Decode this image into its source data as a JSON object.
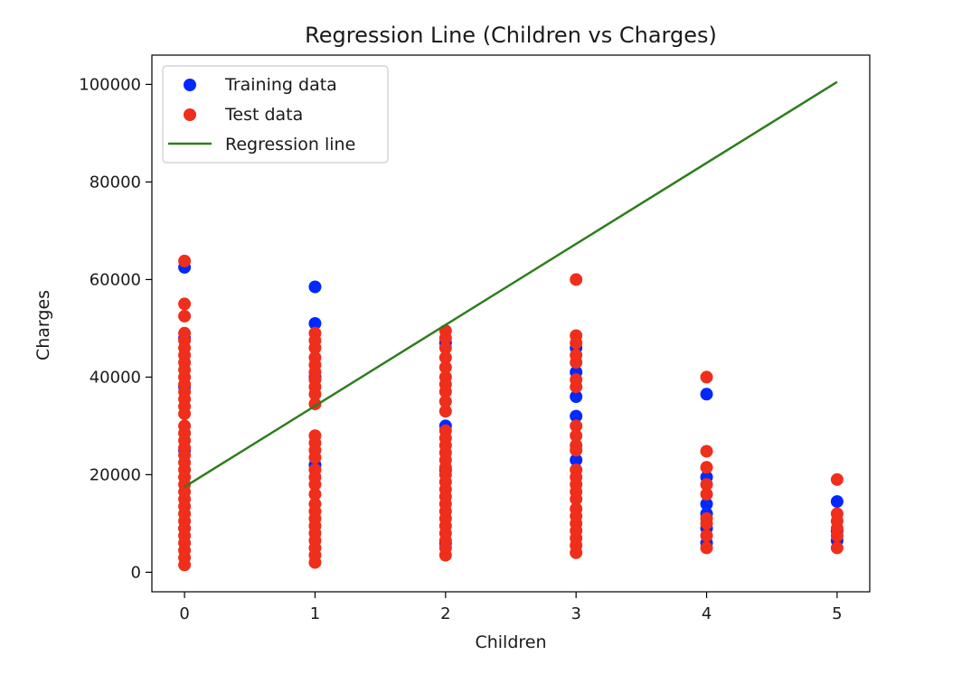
{
  "chart_data": {
    "type": "scatter",
    "title": "Regression Line (Children vs Charges)",
    "xlabel": "Children",
    "ylabel": "Charges",
    "xlim": [
      -0.25,
      5.25
    ],
    "ylim": [
      -4000,
      106000
    ],
    "xticks": [
      0,
      1,
      2,
      3,
      4,
      5
    ],
    "yticks": [
      0,
      20000,
      40000,
      60000,
      80000,
      100000
    ],
    "grid": false,
    "legend_position": "top-left",
    "series": [
      {
        "name": "Training data",
        "kind": "scatter",
        "color": "#0028ff",
        "points": [
          {
            "x": 0,
            "y": 62500
          },
          {
            "x": 0,
            "y": 48000
          },
          {
            "x": 0,
            "y": 38000
          },
          {
            "x": 0,
            "y": 25000
          },
          {
            "x": 0,
            "y": 9000
          },
          {
            "x": 1,
            "y": 58500
          },
          {
            "x": 1,
            "y": 51000
          },
          {
            "x": 1,
            "y": 40000
          },
          {
            "x": 1,
            "y": 22000
          },
          {
            "x": 2,
            "y": 47000
          },
          {
            "x": 2,
            "y": 30000
          },
          {
            "x": 2,
            "y": 21000
          },
          {
            "x": 2,
            "y": 6000
          },
          {
            "x": 3,
            "y": 46000
          },
          {
            "x": 3,
            "y": 41000
          },
          {
            "x": 3,
            "y": 36000
          },
          {
            "x": 3,
            "y": 32000
          },
          {
            "x": 3,
            "y": 23000
          },
          {
            "x": 4,
            "y": 36500
          },
          {
            "x": 4,
            "y": 19500
          },
          {
            "x": 4,
            "y": 14000
          },
          {
            "x": 4,
            "y": 12000
          },
          {
            "x": 4,
            "y": 9000
          },
          {
            "x": 4,
            "y": 6000
          },
          {
            "x": 5,
            "y": 14500
          },
          {
            "x": 5,
            "y": 8500
          },
          {
            "x": 5,
            "y": 6500
          }
        ]
      },
      {
        "name": "Test data",
        "kind": "scatter",
        "color": "#f02e1c",
        "points": [
          {
            "x": 0,
            "y": 63800
          },
          {
            "x": 0,
            "y": 55000
          },
          {
            "x": 0,
            "y": 52500
          },
          {
            "x": 0,
            "y": 49000
          },
          {
            "x": 0,
            "y": 47500
          },
          {
            "x": 0,
            "y": 46000
          },
          {
            "x": 0,
            "y": 44500
          },
          {
            "x": 0,
            "y": 43000
          },
          {
            "x": 0,
            "y": 41500
          },
          {
            "x": 0,
            "y": 40000
          },
          {
            "x": 0,
            "y": 38500
          },
          {
            "x": 0,
            "y": 37000
          },
          {
            "x": 0,
            "y": 35500
          },
          {
            "x": 0,
            "y": 34000
          },
          {
            "x": 0,
            "y": 32500
          },
          {
            "x": 0,
            "y": 30000
          },
          {
            "x": 0,
            "y": 28500
          },
          {
            "x": 0,
            "y": 27000
          },
          {
            "x": 0,
            "y": 25500
          },
          {
            "x": 0,
            "y": 24000
          },
          {
            "x": 0,
            "y": 22500
          },
          {
            "x": 0,
            "y": 21000
          },
          {
            "x": 0,
            "y": 19500
          },
          {
            "x": 0,
            "y": 18000
          },
          {
            "x": 0,
            "y": 16500
          },
          {
            "x": 0,
            "y": 15000
          },
          {
            "x": 0,
            "y": 13500
          },
          {
            "x": 0,
            "y": 12000
          },
          {
            "x": 0,
            "y": 10500
          },
          {
            "x": 0,
            "y": 9000
          },
          {
            "x": 0,
            "y": 7500
          },
          {
            "x": 0,
            "y": 6000
          },
          {
            "x": 0,
            "y": 4500
          },
          {
            "x": 0,
            "y": 3000
          },
          {
            "x": 0,
            "y": 1500
          },
          {
            "x": 1,
            "y": 49000
          },
          {
            "x": 1,
            "y": 47500
          },
          {
            "x": 1,
            "y": 46000
          },
          {
            "x": 1,
            "y": 44000
          },
          {
            "x": 1,
            "y": 42500
          },
          {
            "x": 1,
            "y": 41000
          },
          {
            "x": 1,
            "y": 39500
          },
          {
            "x": 1,
            "y": 38000
          },
          {
            "x": 1,
            "y": 36500
          },
          {
            "x": 1,
            "y": 34500
          },
          {
            "x": 1,
            "y": 28000
          },
          {
            "x": 1,
            "y": 26500
          },
          {
            "x": 1,
            "y": 25000
          },
          {
            "x": 1,
            "y": 23500
          },
          {
            "x": 1,
            "y": 21000
          },
          {
            "x": 1,
            "y": 19500
          },
          {
            "x": 1,
            "y": 18000
          },
          {
            "x": 1,
            "y": 16000
          },
          {
            "x": 1,
            "y": 14000
          },
          {
            "x": 1,
            "y": 12500
          },
          {
            "x": 1,
            "y": 11000
          },
          {
            "x": 1,
            "y": 9500
          },
          {
            "x": 1,
            "y": 8000
          },
          {
            "x": 1,
            "y": 6500
          },
          {
            "x": 1,
            "y": 5000
          },
          {
            "x": 1,
            "y": 3500
          },
          {
            "x": 1,
            "y": 2000
          },
          {
            "x": 2,
            "y": 49500
          },
          {
            "x": 2,
            "y": 48000
          },
          {
            "x": 2,
            "y": 46000
          },
          {
            "x": 2,
            "y": 44000
          },
          {
            "x": 2,
            "y": 42000
          },
          {
            "x": 2,
            "y": 40000
          },
          {
            "x": 2,
            "y": 38500
          },
          {
            "x": 2,
            "y": 37000
          },
          {
            "x": 2,
            "y": 35000
          },
          {
            "x": 2,
            "y": 33000
          },
          {
            "x": 2,
            "y": 29000
          },
          {
            "x": 2,
            "y": 27500
          },
          {
            "x": 2,
            "y": 26000
          },
          {
            "x": 2,
            "y": 24500
          },
          {
            "x": 2,
            "y": 23000
          },
          {
            "x": 2,
            "y": 21500
          },
          {
            "x": 2,
            "y": 20000
          },
          {
            "x": 2,
            "y": 18500
          },
          {
            "x": 2,
            "y": 17000
          },
          {
            "x": 2,
            "y": 15500
          },
          {
            "x": 2,
            "y": 14000
          },
          {
            "x": 2,
            "y": 12500
          },
          {
            "x": 2,
            "y": 11000
          },
          {
            "x": 2,
            "y": 9500
          },
          {
            "x": 2,
            "y": 8000
          },
          {
            "x": 2,
            "y": 6500
          },
          {
            "x": 2,
            "y": 5000
          },
          {
            "x": 2,
            "y": 3500
          },
          {
            "x": 3,
            "y": 60000
          },
          {
            "x": 3,
            "y": 48500
          },
          {
            "x": 3,
            "y": 47000
          },
          {
            "x": 3,
            "y": 44500
          },
          {
            "x": 3,
            "y": 43000
          },
          {
            "x": 3,
            "y": 39500
          },
          {
            "x": 3,
            "y": 38000
          },
          {
            "x": 3,
            "y": 30000
          },
          {
            "x": 3,
            "y": 28000
          },
          {
            "x": 3,
            "y": 26000
          },
          {
            "x": 3,
            "y": 25000
          },
          {
            "x": 3,
            "y": 21000
          },
          {
            "x": 3,
            "y": 19500
          },
          {
            "x": 3,
            "y": 18000
          },
          {
            "x": 3,
            "y": 16500
          },
          {
            "x": 3,
            "y": 15000
          },
          {
            "x": 3,
            "y": 13000
          },
          {
            "x": 3,
            "y": 11500
          },
          {
            "x": 3,
            "y": 10000
          },
          {
            "x": 3,
            "y": 8500
          },
          {
            "x": 3,
            "y": 7000
          },
          {
            "x": 3,
            "y": 5500
          },
          {
            "x": 3,
            "y": 4000
          },
          {
            "x": 4,
            "y": 40000
          },
          {
            "x": 4,
            "y": 24800
          },
          {
            "x": 4,
            "y": 21500
          },
          {
            "x": 4,
            "y": 18000
          },
          {
            "x": 4,
            "y": 16000
          },
          {
            "x": 4,
            "y": 11000
          },
          {
            "x": 4,
            "y": 10000
          },
          {
            "x": 4,
            "y": 7500
          },
          {
            "x": 4,
            "y": 5000
          },
          {
            "x": 5,
            "y": 19000
          },
          {
            "x": 5,
            "y": 12000
          },
          {
            "x": 5,
            "y": 10500
          },
          {
            "x": 5,
            "y": 9000
          },
          {
            "x": 5,
            "y": 7500
          },
          {
            "x": 5,
            "y": 5000
          }
        ]
      },
      {
        "name": "Regression line",
        "kind": "line",
        "color": "#2e7d1c",
        "points": [
          {
            "x": 0,
            "y": 17500
          },
          {
            "x": 5,
            "y": 100500
          }
        ]
      }
    ]
  }
}
